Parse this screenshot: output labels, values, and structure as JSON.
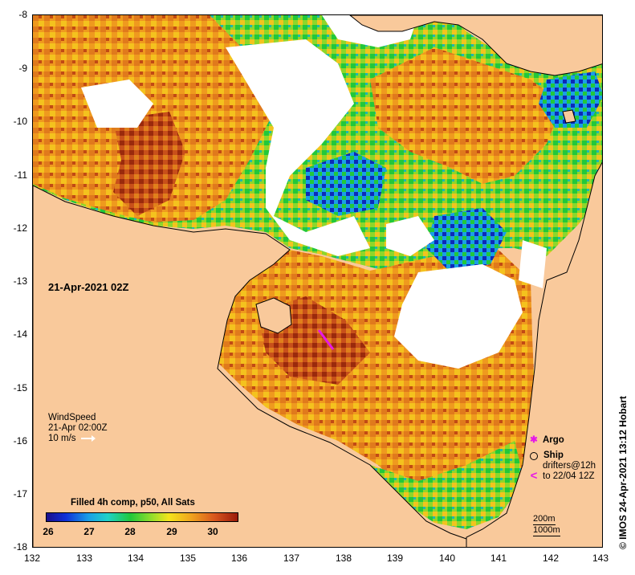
{
  "map": {
    "timestamp": "21-Apr-2021 02Z",
    "y_ticks": [
      "-8",
      "-9",
      "-10",
      "-11",
      "-12",
      "-13",
      "-14",
      "-15",
      "-16",
      "-17",
      "-18"
    ],
    "x_ticks": [
      "132",
      "133",
      "134",
      "135",
      "136",
      "137",
      "138",
      "139",
      "140",
      "141",
      "142",
      "143"
    ],
    "colors": {
      "land": "#f9c99b",
      "no_data": "#ffffff",
      "coast": "#000000"
    }
  },
  "wind": {
    "title": "WindSpeed",
    "time": "21-Apr 02:00Z",
    "scale": "10 m/s"
  },
  "colorbar": {
    "title": "Filled 4h comp, p50, All Sats",
    "ticks": [
      "26",
      "27",
      "28",
      "29",
      "30"
    ]
  },
  "legend": {
    "argo": "Argo",
    "ship": "Ship",
    "drifters_line1": "drifters@12h",
    "drifters_line2": "to 22/04 12Z"
  },
  "isobaths": {
    "a": "200m",
    "b": "1000m"
  },
  "credit": "© IMOS 24-Apr-2021 13:12 Hobart"
}
